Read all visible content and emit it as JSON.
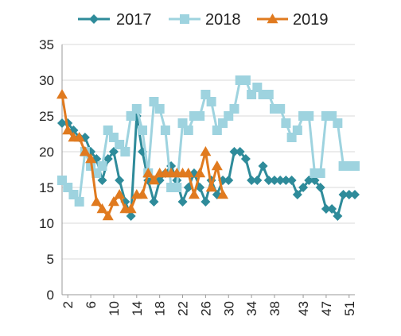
{
  "chart_data": {
    "type": "line",
    "title": "",
    "xlabel": "",
    "ylabel": "",
    "ylim": [
      0,
      35
    ],
    "yticks": [
      0,
      5,
      10,
      15,
      20,
      25,
      30,
      35
    ],
    "xticks": [
      2,
      6,
      10,
      14,
      18,
      22,
      26,
      30,
      34,
      38,
      43,
      47,
      51
    ],
    "xlim": [
      1,
      52
    ],
    "grid": "horizontal",
    "legend_position": "top",
    "colors": {
      "2017": "#2E8B9A",
      "2018": "#9ED3DF",
      "2019": "#E07A1F"
    },
    "series": [
      {
        "name": "2017",
        "marker": "diamond",
        "x": [
          1,
          2,
          3,
          4,
          5,
          6,
          7,
          8,
          9,
          10,
          11,
          12,
          13,
          14,
          15,
          16,
          17,
          18,
          19,
          20,
          21,
          22,
          23,
          24,
          25,
          26,
          27,
          28,
          29,
          30,
          31,
          32,
          33,
          34,
          35,
          36,
          37,
          38,
          39,
          40,
          41,
          42,
          43,
          44,
          45,
          46,
          47,
          48,
          49,
          50,
          51,
          52
        ],
        "values": [
          24,
          24,
          23,
          22,
          22,
          20,
          19,
          16,
          19,
          20,
          16,
          13,
          11,
          25,
          20,
          16,
          13,
          16,
          17,
          18,
          16,
          13,
          15,
          17,
          15,
          13,
          16,
          14,
          16,
          16,
          20,
          20,
          19,
          16,
          16,
          18,
          16,
          16,
          16,
          16,
          16,
          14,
          15,
          16,
          16,
          15,
          12,
          12,
          11,
          14,
          14,
          14
        ]
      },
      {
        "name": "2018",
        "marker": "square",
        "x": [
          1,
          2,
          3,
          4,
          5,
          6,
          7,
          8,
          9,
          10,
          11,
          12,
          13,
          14,
          15,
          16,
          17,
          18,
          19,
          20,
          21,
          22,
          23,
          24,
          25,
          26,
          27,
          28,
          29,
          30,
          31,
          32,
          33,
          34,
          35,
          36,
          37,
          38,
          39,
          40,
          41,
          42,
          43,
          44,
          45,
          46,
          47,
          48,
          49,
          50,
          51,
          52
        ],
        "values": [
          16,
          15,
          14,
          13,
          20,
          18,
          17,
          18,
          23,
          22,
          21,
          20,
          25,
          26,
          23,
          17,
          27,
          26,
          23,
          15,
          15,
          24,
          23,
          25,
          25,
          28,
          27,
          23,
          24,
          25,
          26,
          30,
          30,
          28,
          29,
          28,
          28,
          26,
          26,
          24,
          22,
          23,
          25,
          25,
          17,
          17,
          25,
          25,
          24,
          18,
          18,
          18
        ]
      },
      {
        "name": "2019",
        "marker": "triangle",
        "x": [
          1,
          2,
          3,
          4,
          5,
          6,
          7,
          8,
          9,
          10,
          11,
          12,
          13,
          14,
          15,
          16,
          17,
          18,
          19,
          20,
          21,
          22,
          23,
          24,
          25,
          26,
          27,
          28,
          29
        ],
        "values": [
          28,
          23,
          22,
          22,
          20,
          19,
          13,
          12,
          11,
          13,
          14,
          12,
          12,
          14,
          14,
          17,
          16,
          17,
          17,
          17,
          17,
          17,
          17,
          14,
          17,
          20,
          15,
          18,
          14
        ]
      }
    ]
  }
}
